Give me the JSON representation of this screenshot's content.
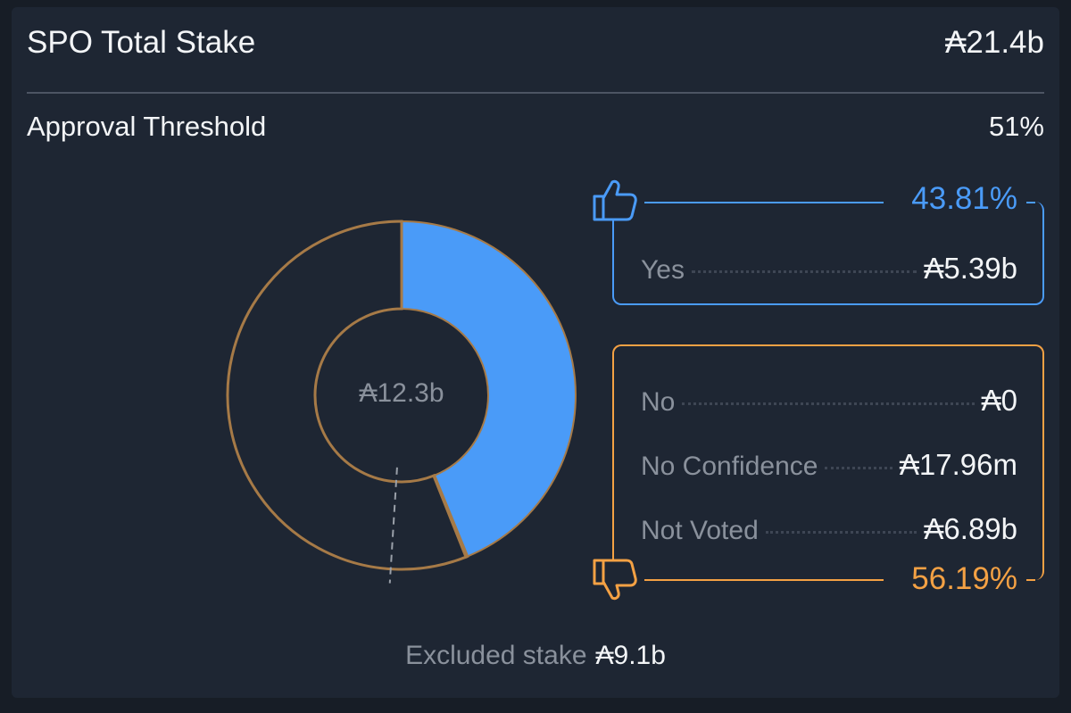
{
  "header": {
    "title": "SPO Total Stake",
    "total": "₳21.4b"
  },
  "threshold": {
    "label": "Approval Threshold",
    "value": "51%"
  },
  "donut": {
    "center_label": "₳12.3b"
  },
  "yes": {
    "icon": "thumbs-up-icon",
    "percent": "43.81%",
    "label": "Yes",
    "value": "₳5.39b"
  },
  "no_group": {
    "icon": "thumbs-down-icon",
    "percent": "56.19%",
    "rows": [
      {
        "label": "No",
        "value": "₳0"
      },
      {
        "label": "No Confidence",
        "value": "₳17.96m"
      },
      {
        "label": "Not Voted",
        "value": "₳6.89b"
      }
    ]
  },
  "excluded": {
    "label": "Excluded stake",
    "value": "₳9.1b"
  },
  "colors": {
    "yes": "#4a9bf8",
    "no": "#f4a144",
    "ring_outline": "#a67a47",
    "background": "#1e2633"
  },
  "chart_data": {
    "type": "pie",
    "style": "donut",
    "categories": [
      "Yes",
      "No",
      "No Confidence",
      "Not Voted"
    ],
    "values": [
      5.39,
      0,
      0.01796,
      6.89
    ],
    "unit": "₳ billions",
    "percentages": {
      "yes": 43.81,
      "no_total": 56.19
    },
    "center_total": 12.3,
    "excluded_stake": 9.1,
    "threshold_percent": 51
  }
}
